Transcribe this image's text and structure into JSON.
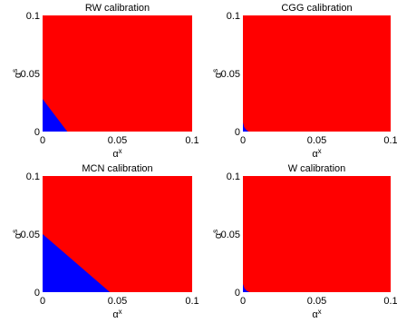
{
  "chart_data": [
    {
      "type": "area",
      "title": "RW calibration",
      "xlabel": "αx",
      "ylabel": "αs",
      "xlim": [
        0,
        0.1
      ],
      "ylim": [
        0,
        0.1
      ],
      "xticks": [
        "0",
        "0.05",
        "0.1"
      ],
      "yticks": [
        "0",
        "0.05",
        "0.1"
      ],
      "background_color": "#ff0000",
      "region_color": "#0000ff",
      "boundary_x": [
        0,
        0.0165
      ],
      "boundary_y": [
        0.028,
        0
      ],
      "grid": false
    },
    {
      "type": "area",
      "title": "CGG calibration",
      "xlabel": "αx",
      "ylabel": "αs",
      "xlim": [
        0,
        0.1
      ],
      "ylim": [
        0,
        0.1
      ],
      "xticks": [
        "0",
        "0.05",
        "0.1"
      ],
      "yticks": [
        "0",
        "0.05",
        "0.1"
      ],
      "background_color": "#ff0000",
      "region_color": "#0000ff",
      "boundary_x": [
        0,
        0.0008,
        0.0022,
        0.004
      ],
      "boundary_y": [
        0.008,
        0.004,
        0.0015,
        0
      ],
      "grid": false
    },
    {
      "type": "area",
      "title": "MCN calibration",
      "xlabel": "αx",
      "ylabel": "αs",
      "xlim": [
        0,
        0.1
      ],
      "ylim": [
        0,
        0.1
      ],
      "xticks": [
        "0",
        "0.05",
        "0.1"
      ],
      "yticks": [
        "0",
        "0.05",
        "0.1"
      ],
      "background_color": "#ff0000",
      "region_color": "#0000ff",
      "boundary_x": [
        0,
        0.045
      ],
      "boundary_y": [
        0.05,
        0
      ],
      "grid": false
    },
    {
      "type": "area",
      "title": "W calibration",
      "xlabel": "αx",
      "ylabel": "αs",
      "xlim": [
        0,
        0.1
      ],
      "ylim": [
        0,
        0.1
      ],
      "xticks": [
        "0",
        "0.05",
        "0.1"
      ],
      "yticks": [
        "0",
        "0.05",
        "0.1"
      ],
      "background_color": "#ff0000",
      "region_color": "#0000ff",
      "boundary_x": [
        0,
        0.001,
        0.0025,
        0.0045
      ],
      "boundary_y": [
        0.007,
        0.0035,
        0.0012,
        0
      ],
      "grid": false
    }
  ]
}
